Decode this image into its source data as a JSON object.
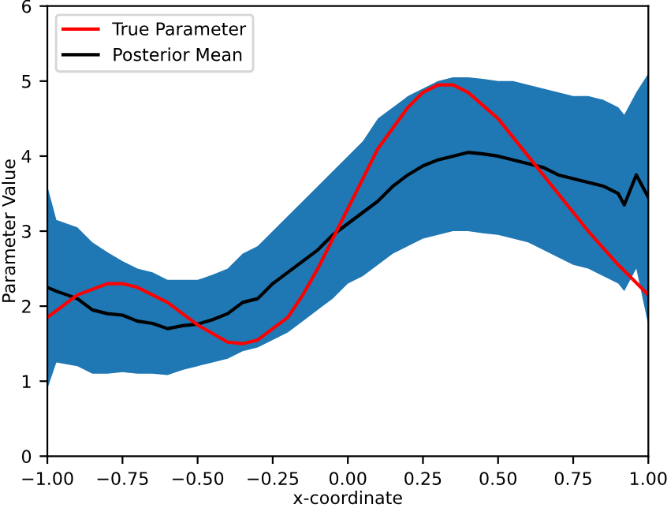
{
  "chart_data": {
    "type": "line",
    "xlabel": "x-coordinate",
    "ylabel": "Parameter Value",
    "xlim": [
      -1.0,
      1.0
    ],
    "xticks": [
      {
        "value": -1.0,
        "label": "−1.00"
      },
      {
        "value": -0.75,
        "label": "−0.75"
      },
      {
        "value": -0.5,
        "label": "−0.50"
      },
      {
        "value": -0.25,
        "label": "−0.25"
      },
      {
        "value": 0.0,
        "label": "0.00"
      },
      {
        "value": 0.25,
        "label": "0.25"
      },
      {
        "value": 0.5,
        "label": "0.50"
      },
      {
        "value": 0.75,
        "label": "0.75"
      },
      {
        "value": 1.0,
        "label": "1.00"
      }
    ],
    "ylim": [
      0,
      6
    ],
    "yticks": [
      0,
      1,
      2,
      3,
      4,
      5,
      6
    ],
    "grid": false,
    "legend": "top left",
    "series": [
      {
        "name": "True Parameter",
        "color": "#ff0000",
        "x": [
          -1.0,
          -0.9,
          -0.8,
          -0.75,
          -0.7,
          -0.6,
          -0.5,
          -0.4,
          -0.35,
          -0.3,
          -0.2,
          -0.15,
          -0.1,
          -0.05,
          0.0,
          0.05,
          0.1,
          0.2,
          0.25,
          0.3,
          0.35,
          0.4,
          0.5,
          0.6,
          0.7,
          0.8,
          0.9,
          1.0
        ],
        "values": [
          1.85,
          2.15,
          2.3,
          2.3,
          2.25,
          2.05,
          1.75,
          1.52,
          1.5,
          1.55,
          1.85,
          2.15,
          2.5,
          2.9,
          3.3,
          3.7,
          4.1,
          4.65,
          4.85,
          4.95,
          4.95,
          4.85,
          4.5,
          4.0,
          3.5,
          3.0,
          2.55,
          2.15
        ]
      },
      {
        "name": "Posterior Mean",
        "color": "#000000",
        "x": [
          -1.0,
          -0.97,
          -0.9,
          -0.85,
          -0.8,
          -0.75,
          -0.7,
          -0.65,
          -0.6,
          -0.55,
          -0.5,
          -0.45,
          -0.4,
          -0.35,
          -0.3,
          -0.25,
          -0.2,
          -0.15,
          -0.1,
          -0.05,
          0.0,
          0.05,
          0.1,
          0.15,
          0.2,
          0.25,
          0.3,
          0.35,
          0.4,
          0.45,
          0.5,
          0.55,
          0.6,
          0.65,
          0.7,
          0.75,
          0.8,
          0.85,
          0.9,
          0.92,
          0.96,
          1.0
        ],
        "values": [
          2.25,
          2.2,
          2.1,
          1.95,
          1.9,
          1.88,
          1.8,
          1.77,
          1.7,
          1.74,
          1.76,
          1.82,
          1.9,
          2.05,
          2.1,
          2.3,
          2.45,
          2.6,
          2.75,
          2.95,
          3.1,
          3.25,
          3.4,
          3.6,
          3.75,
          3.87,
          3.95,
          4.0,
          4.05,
          4.03,
          4.0,
          3.95,
          3.9,
          3.85,
          3.75,
          3.7,
          3.65,
          3.6,
          3.5,
          3.35,
          3.75,
          3.45
        ],
        "upper": [
          3.6,
          3.15,
          3.05,
          2.85,
          2.72,
          2.6,
          2.5,
          2.45,
          2.35,
          2.35,
          2.35,
          2.42,
          2.5,
          2.7,
          2.8,
          3.0,
          3.2,
          3.4,
          3.6,
          3.8,
          4.0,
          4.2,
          4.5,
          4.65,
          4.8,
          4.9,
          5.0,
          5.05,
          5.05,
          5.03,
          5.0,
          5.0,
          4.95,
          4.9,
          4.85,
          4.8,
          4.8,
          4.75,
          4.65,
          4.55,
          4.85,
          5.1
        ],
        "lower": [
          0.9,
          1.25,
          1.2,
          1.1,
          1.1,
          1.12,
          1.1,
          1.1,
          1.08,
          1.15,
          1.2,
          1.25,
          1.3,
          1.4,
          1.45,
          1.55,
          1.65,
          1.8,
          1.95,
          2.1,
          2.3,
          2.4,
          2.55,
          2.7,
          2.8,
          2.9,
          2.95,
          3.0,
          3.0,
          2.97,
          2.95,
          2.9,
          2.85,
          2.75,
          2.65,
          2.55,
          2.5,
          2.4,
          2.3,
          2.2,
          2.5,
          1.75
        ]
      }
    ]
  }
}
